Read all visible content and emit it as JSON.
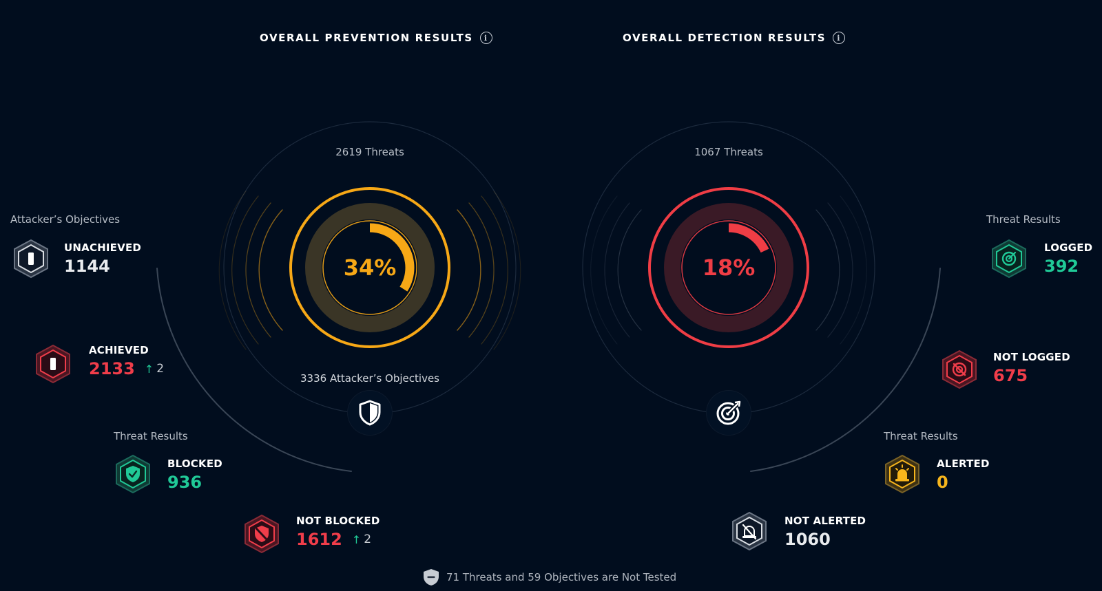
{
  "prevention": {
    "title": "OVERALL PREVENTION RESULTS",
    "threats_label": "2619 Threats",
    "percent": 34,
    "percent_label": "34%",
    "objectives_label": "3336 Attacker’s Objectives",
    "color": "#f7a816",
    "objectives_heading": "Attacker’s Objectives",
    "threat_results_heading": "Threat Results",
    "unachieved": {
      "label": "UNACHIEVED",
      "value": "1144"
    },
    "achieved": {
      "label": "ACHIEVED",
      "value": "2133",
      "delta": "2"
    },
    "blocked": {
      "label": "BLOCKED",
      "value": "936"
    },
    "not_blocked": {
      "label": "NOT BLOCKED",
      "value": "1612",
      "delta": "2"
    },
    "center_icon": "shield-icon"
  },
  "detection": {
    "title": "OVERALL DETECTION RESULTS",
    "threats_label": "1067 Threats",
    "percent": 18,
    "percent_label": "18%",
    "color": "#ef3d45",
    "threat_results_heading_top": "Threat Results",
    "threat_results_heading_bottom": "Threat Results",
    "logged": {
      "label": "LOGGED",
      "value": "392"
    },
    "not_logged": {
      "label": "NOT LOGGED",
      "value": "675"
    },
    "alerted": {
      "label": "ALERTED",
      "value": "0"
    },
    "not_alerted": {
      "label": "NOT ALERTED",
      "value": "1060"
    },
    "center_icon": "target-icon"
  },
  "footer": {
    "text": "71 Threats and 59 Objectives are Not Tested",
    "icon": "untested-shield-icon"
  },
  "info_glyph": "i",
  "colors": {
    "background": "#010d1e",
    "green": "#20c997",
    "red": "#f03d4a",
    "yellow": "#f7b51c",
    "gray": "#a7afba"
  }
}
